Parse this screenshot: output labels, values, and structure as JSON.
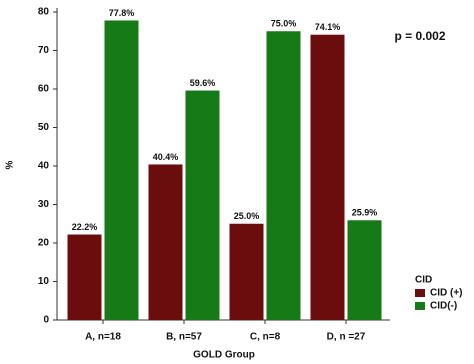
{
  "chart_data": {
    "type": "grouped-bar",
    "categories": [
      "A, n=18",
      "B, n=57",
      "C, n=8",
      "D, n =27"
    ],
    "series": [
      {
        "name": "CID (+)",
        "color": "#6b0d0d",
        "values": [
          22.2,
          40.4,
          25.0,
          74.1
        ],
        "value_labels": [
          "22.2%",
          "40.4%",
          "25.0%",
          "74.1%"
        ]
      },
      {
        "name": "CID(-)",
        "color": "#167a16",
        "values": [
          77.8,
          59.6,
          75.0,
          25.9
        ],
        "value_labels": [
          "77.8%",
          "59.6%",
          "75.0%",
          "25.9%"
        ]
      }
    ],
    "ylim": [
      0,
      80
    ],
    "yticks": [
      0,
      10,
      20,
      30,
      40,
      50,
      60,
      70,
      80
    ],
    "ylabel": "%",
    "xlabel": "GOLD Group",
    "legend_title": "CID",
    "legend_position": "lower right",
    "annotation": "p = 0.002"
  }
}
